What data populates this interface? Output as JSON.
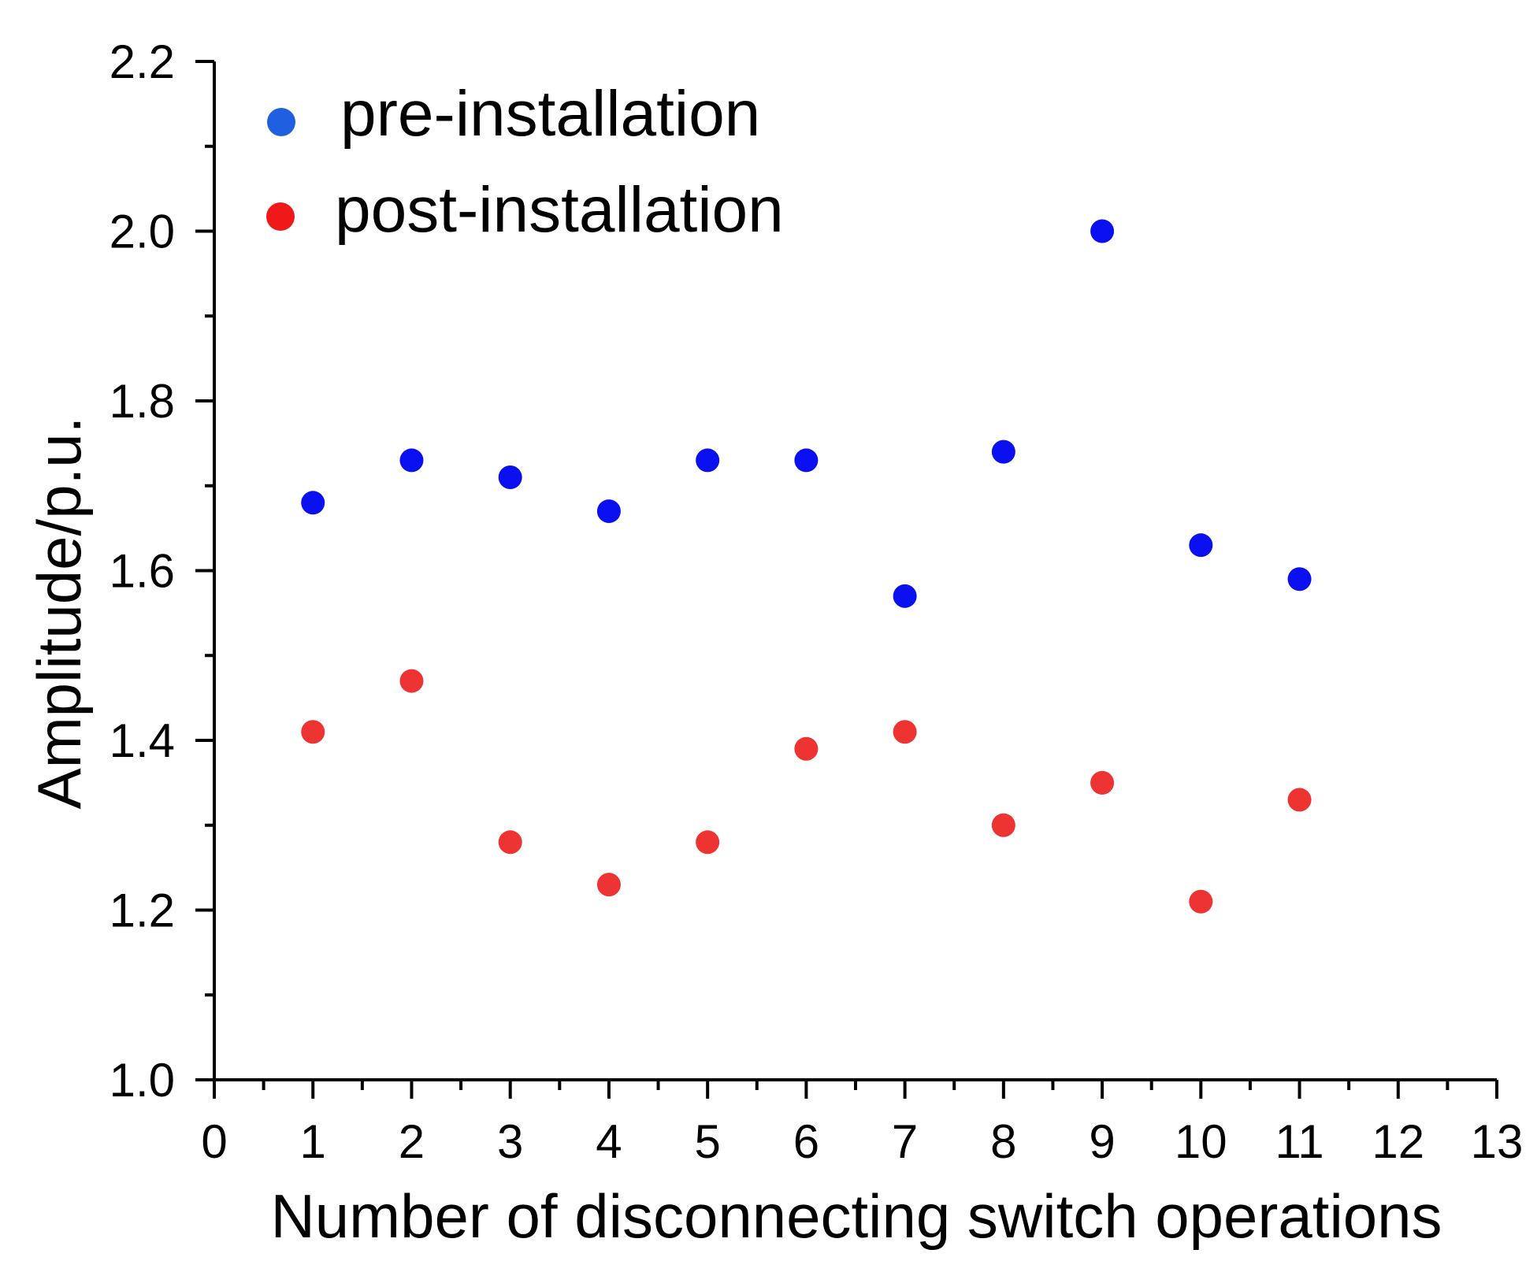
{
  "chart_data": {
    "type": "scatter",
    "title": "",
    "xlabel": "Number of disconnecting switch operations",
    "ylabel": "Amplitude/p.u.",
    "xlim": [
      0,
      13
    ],
    "ylim": [
      1.0,
      2.2
    ],
    "x_ticks": [
      "0",
      "1",
      "2",
      "3",
      "4",
      "5",
      "6",
      "7",
      "8",
      "9",
      "10",
      "11",
      "12",
      "13"
    ],
    "y_ticks": [
      "1.0",
      "1.2",
      "1.4",
      "1.6",
      "1.8",
      "2.0",
      "2.2"
    ],
    "grid": false,
    "legend_position": "top-left",
    "series": [
      {
        "name": "pre-installation",
        "color": "#0a10f0",
        "legend_color": "#1f5fe0",
        "x": [
          1,
          2,
          3,
          4,
          5,
          6,
          7,
          8,
          9,
          10,
          11
        ],
        "y": [
          1.68,
          1.73,
          1.71,
          1.67,
          1.73,
          1.73,
          1.57,
          1.74,
          2.0,
          1.63,
          1.59
        ]
      },
      {
        "name": "post-installation",
        "color": "#ee3333",
        "legend_color": "#f01818",
        "x": [
          1,
          2,
          3,
          4,
          5,
          6,
          7,
          8,
          9,
          10,
          11
        ],
        "y": [
          1.41,
          1.47,
          1.28,
          1.23,
          1.28,
          1.39,
          1.41,
          1.3,
          1.35,
          1.21,
          1.33
        ]
      }
    ]
  }
}
